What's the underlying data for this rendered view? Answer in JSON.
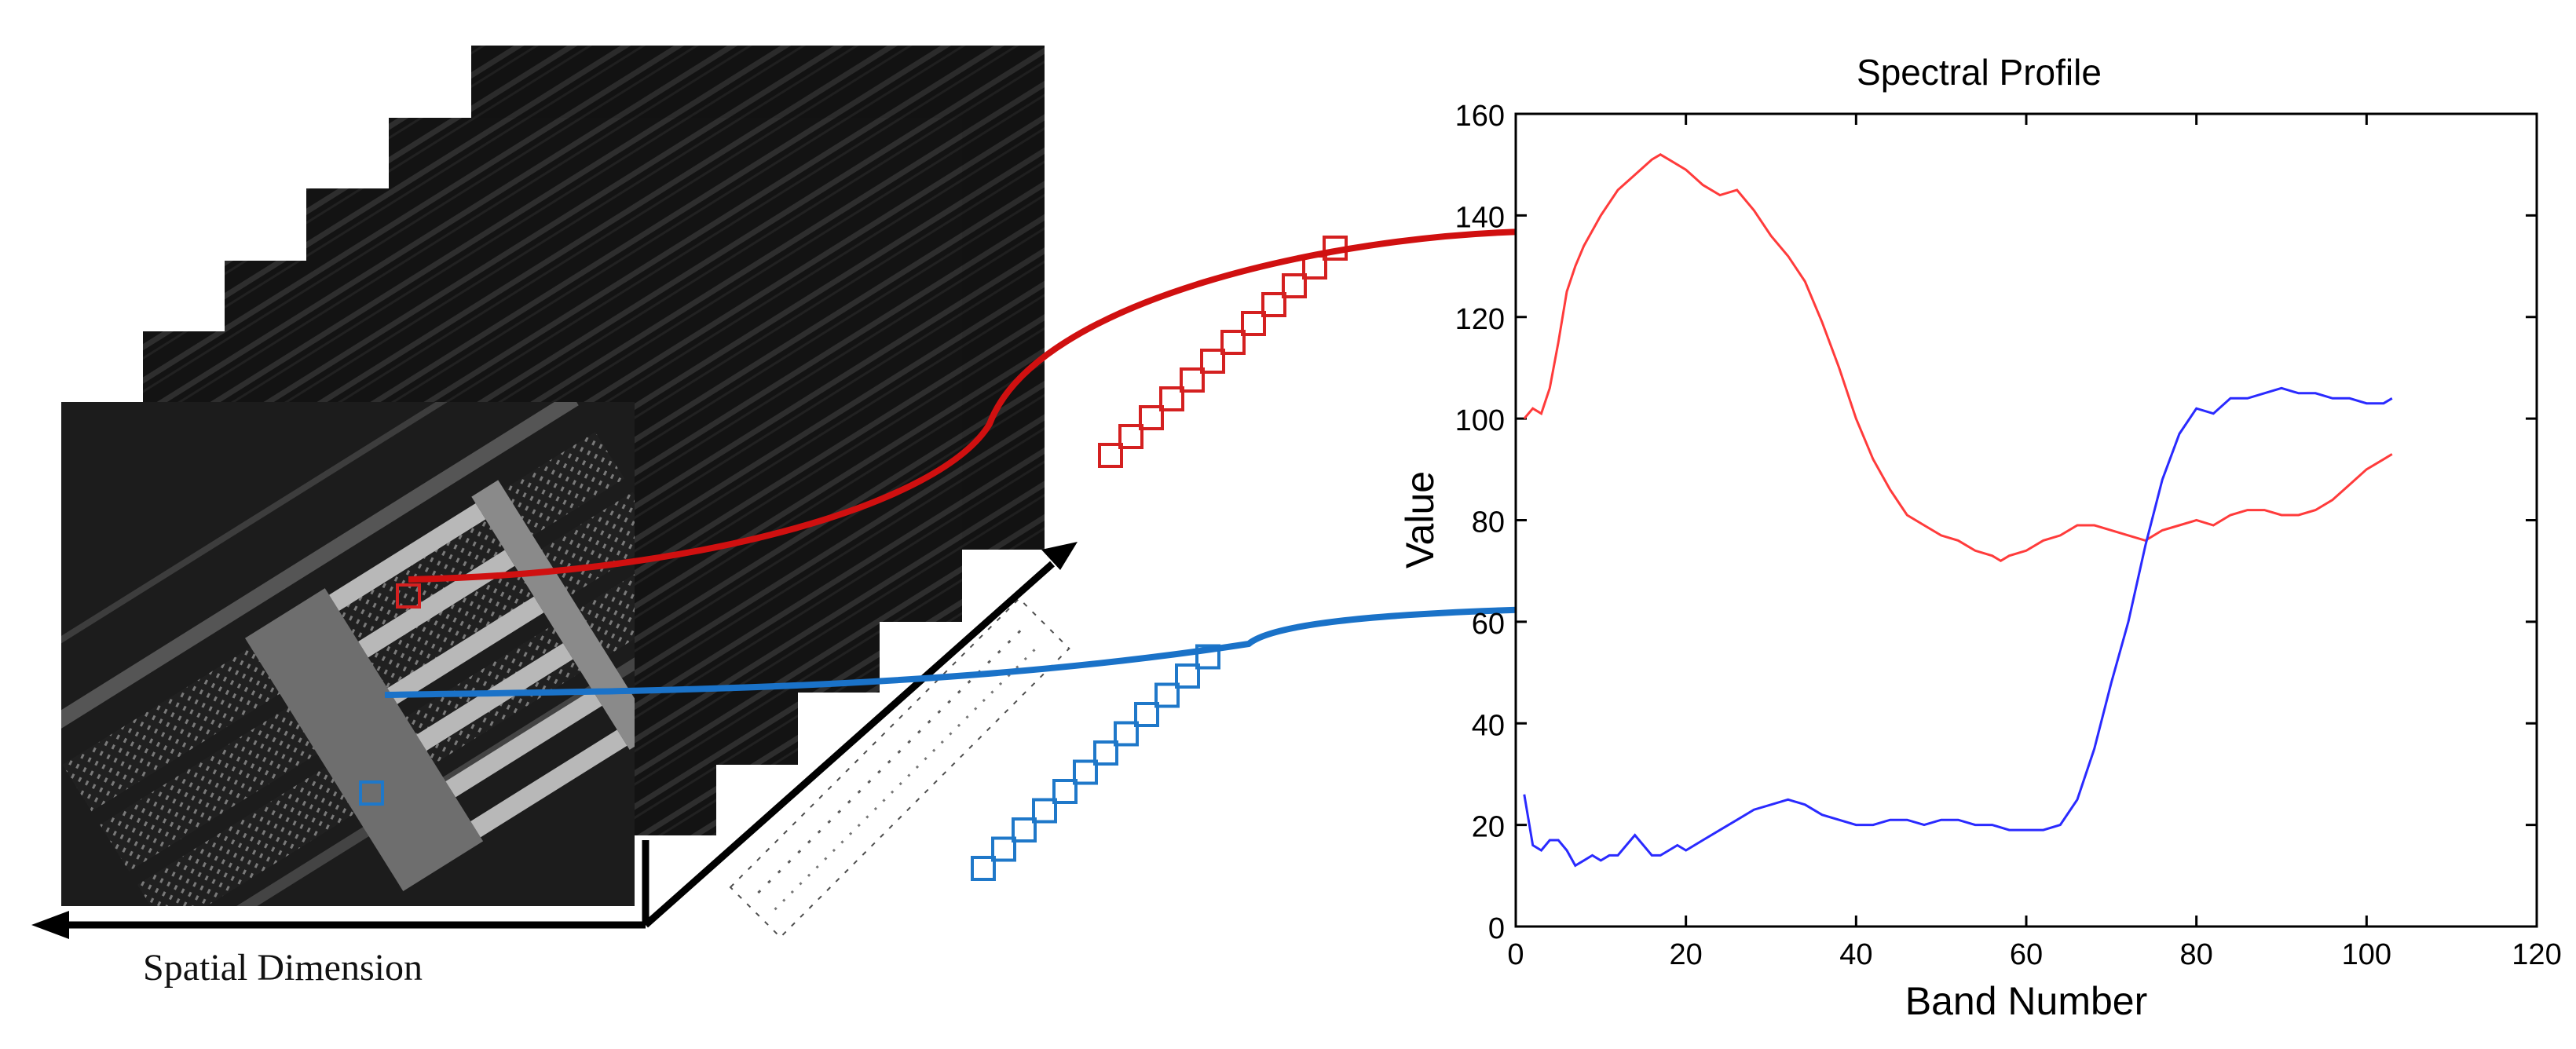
{
  "figure": {
    "spatial_label": "Spatial Dimension"
  },
  "colors": {
    "red_curve": "#ff3b3b",
    "blue_curve": "#2a2aff",
    "red_arrow": "#d01010",
    "blue_arrow": "#1a72c8",
    "red_pixel": "#d42020",
    "blue_pixel": "#1f78c9",
    "image_bg": "#1a1a1a"
  },
  "icons": {
    "red_pixel": "square-outline-icon",
    "blue_pixel": "square-outline-icon",
    "arrow_head": "arrow-right-icon"
  },
  "chart_data": {
    "type": "line",
    "title": "Spectral Profile",
    "xlabel": "Band Number",
    "ylabel": "Value",
    "xlim": [
      0,
      120
    ],
    "ylim": [
      0,
      160
    ],
    "xticks": [
      0,
      20,
      40,
      60,
      80,
      100,
      120
    ],
    "yticks": [
      0,
      20,
      40,
      60,
      80,
      100,
      120,
      140,
      160
    ],
    "grid": false,
    "series": [
      {
        "name": "red pixel",
        "color": "#ff3b3b",
        "x": [
          1,
          2,
          3,
          4,
          5,
          6,
          7,
          8,
          10,
          12,
          14,
          16,
          17,
          18,
          20,
          22,
          24,
          26,
          28,
          30,
          32,
          34,
          36,
          38,
          40,
          42,
          44,
          46,
          48,
          50,
          52,
          54,
          56,
          57,
          58,
          60,
          62,
          64,
          66,
          68,
          70,
          72,
          74,
          76,
          78,
          80,
          82,
          84,
          86,
          88,
          90,
          92,
          94,
          96,
          98,
          100,
          102,
          103
        ],
        "y": [
          100,
          102,
          101,
          106,
          115,
          125,
          130,
          134,
          140,
          145,
          148,
          151,
          152,
          151,
          149,
          146,
          144,
          145,
          141,
          136,
          132,
          127,
          119,
          110,
          100,
          92,
          86,
          81,
          79,
          77,
          76,
          74,
          73,
          72,
          73,
          74,
          76,
          77,
          79,
          79,
          78,
          77,
          76,
          78,
          79,
          80,
          79,
          81,
          82,
          82,
          81,
          81,
          82,
          84,
          87,
          90,
          92,
          93
        ]
      },
      {
        "name": "blue pixel",
        "color": "#2a2aff",
        "x": [
          1,
          2,
          3,
          4,
          5,
          6,
          7,
          8,
          9,
          10,
          11,
          12,
          13,
          14,
          15,
          16,
          17,
          18,
          19,
          20,
          22,
          24,
          26,
          28,
          30,
          32,
          34,
          36,
          38,
          40,
          42,
          44,
          46,
          48,
          50,
          52,
          54,
          56,
          58,
          60,
          62,
          64,
          66,
          68,
          70,
          72,
          74,
          76,
          78,
          80,
          82,
          84,
          86,
          88,
          90,
          92,
          94,
          96,
          98,
          100,
          102,
          103
        ],
        "y": [
          26,
          16,
          15,
          17,
          17,
          15,
          12,
          13,
          14,
          13,
          14,
          14,
          16,
          18,
          16,
          14,
          14,
          15,
          16,
          15,
          17,
          19,
          21,
          23,
          24,
          25,
          24,
          22,
          21,
          20,
          20,
          21,
          21,
          20,
          21,
          21,
          20,
          20,
          19,
          19,
          19,
          20,
          25,
          35,
          48,
          60,
          75,
          88,
          97,
          102,
          101,
          104,
          104,
          105,
          106,
          105,
          105,
          104,
          104,
          103,
          103,
          104
        ]
      }
    ]
  }
}
